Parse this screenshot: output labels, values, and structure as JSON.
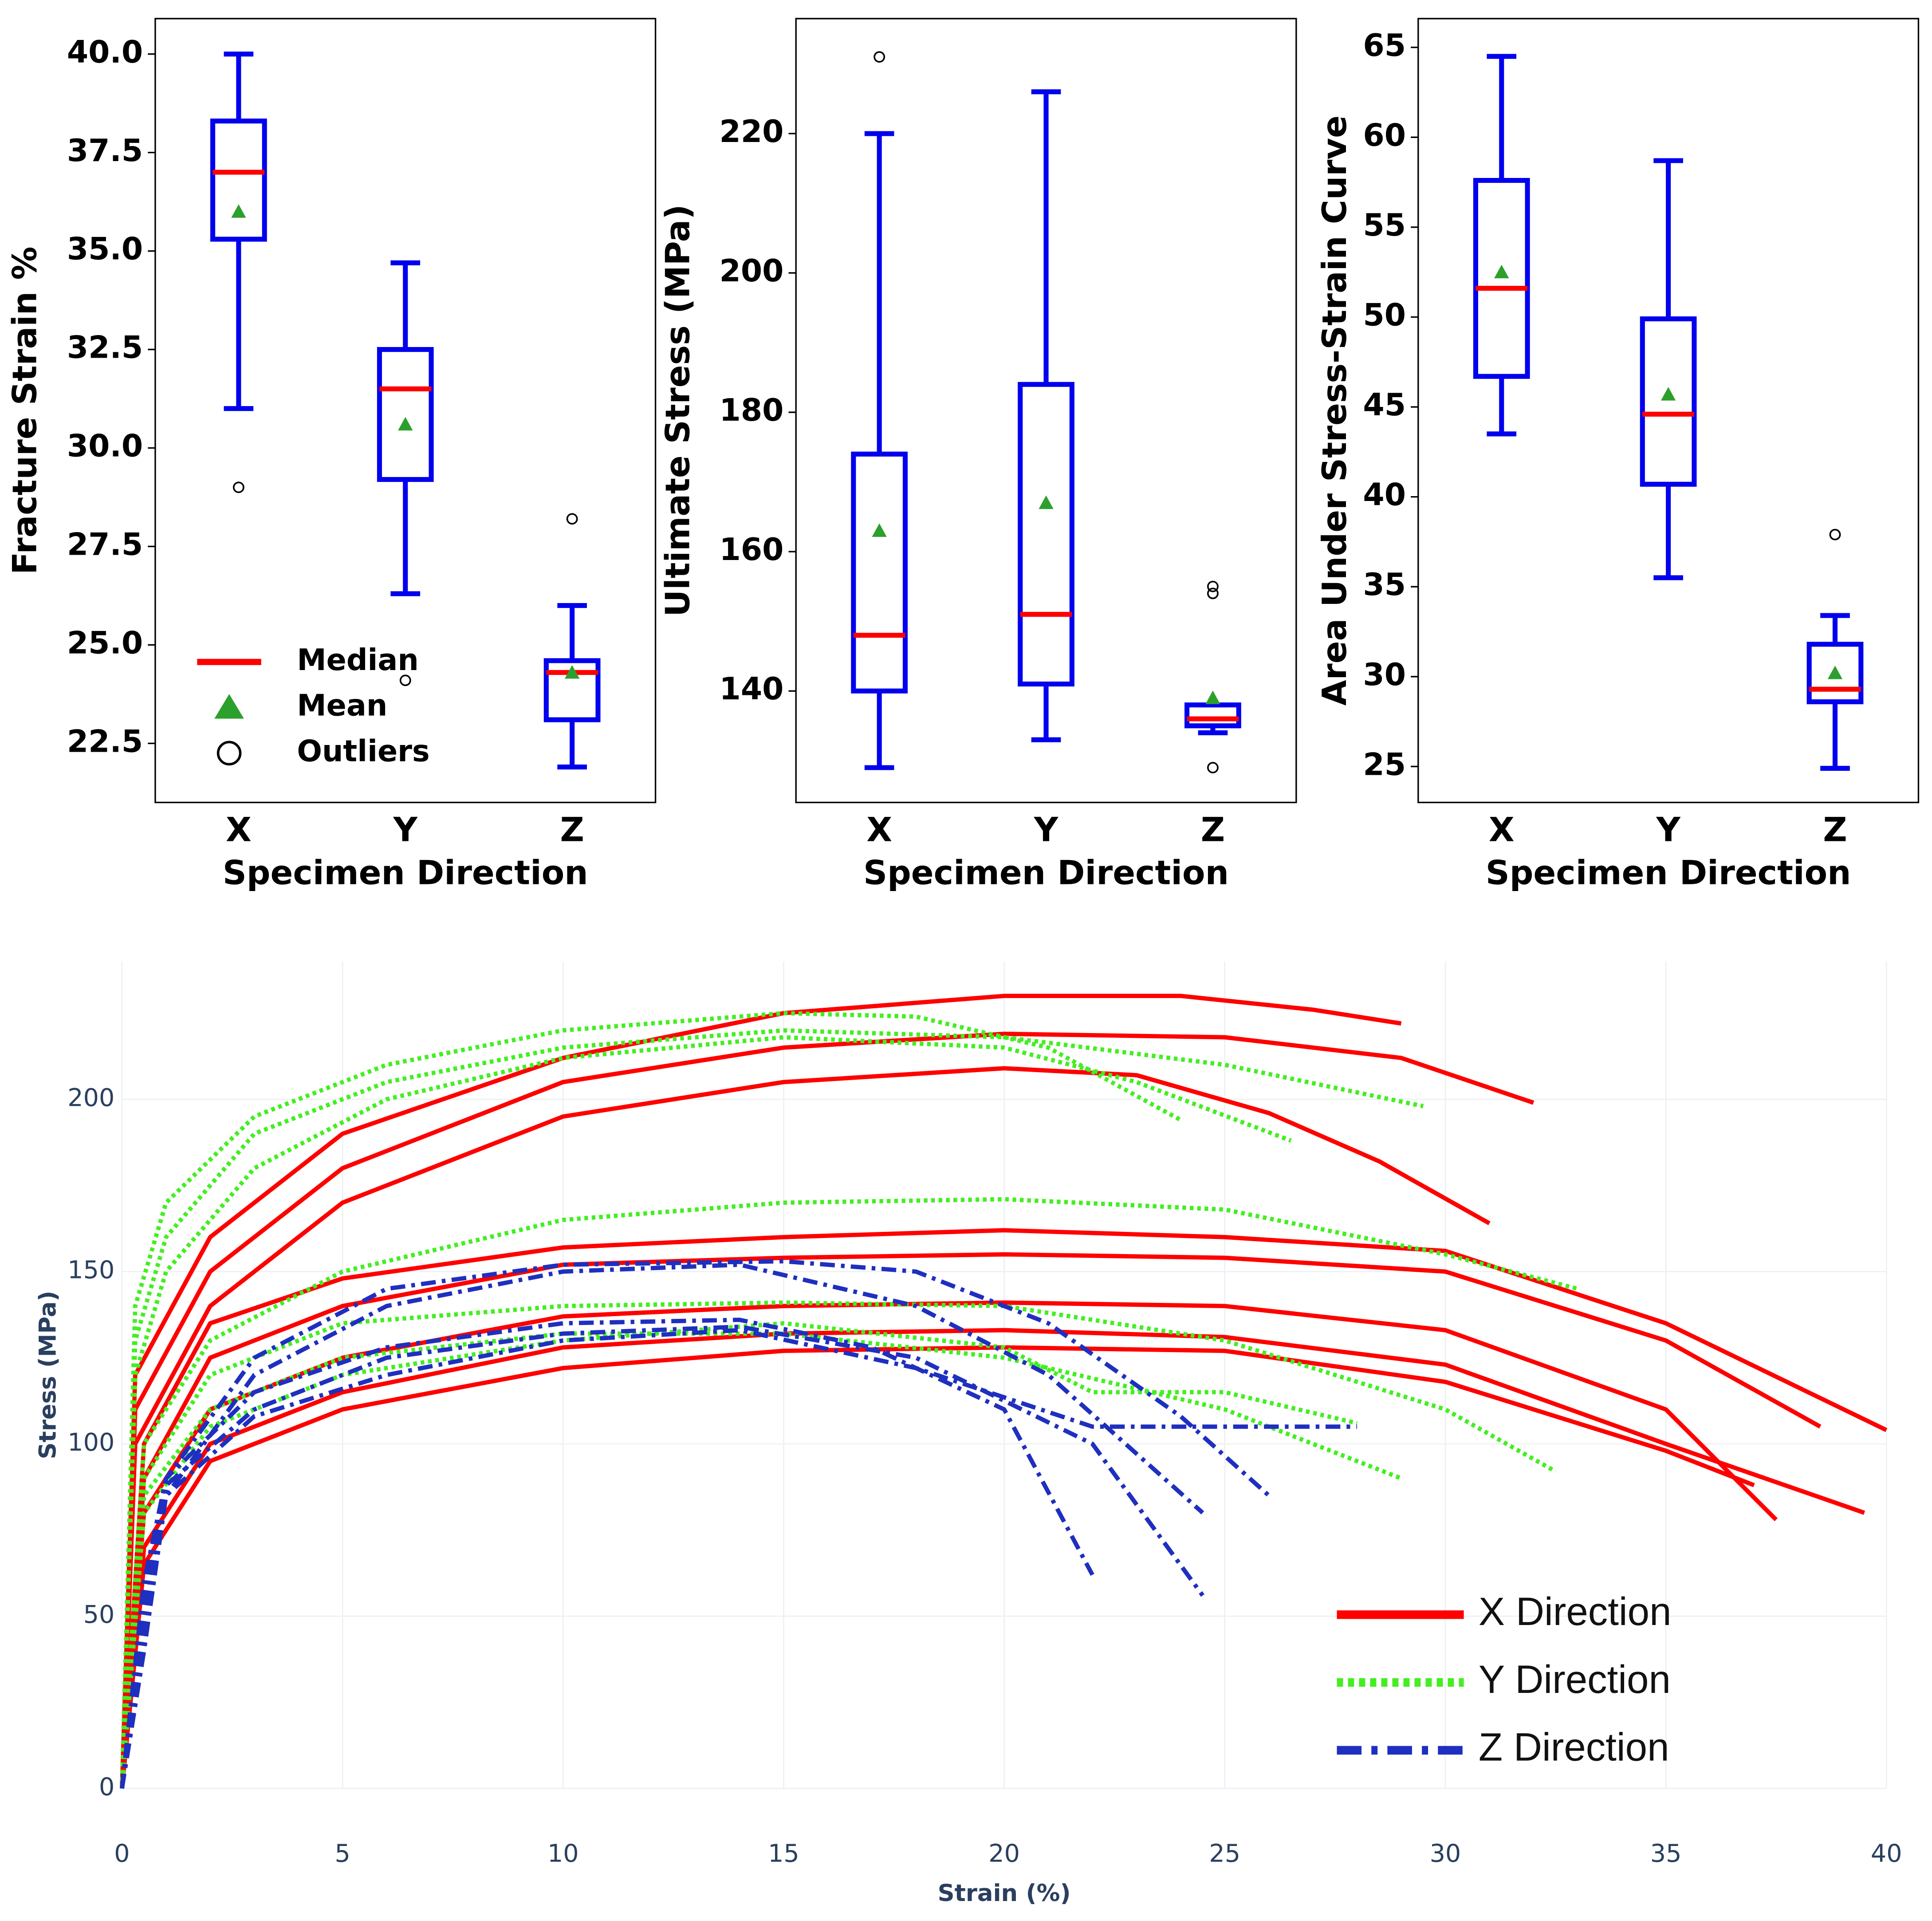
{
  "chart_data": [
    {
      "type": "box",
      "ylabel": "Fracture Strain %",
      "xlabel": "Specimen Direction",
      "categories": [
        "X",
        "Y",
        "Z"
      ],
      "boxes": [
        {
          "min": 31.0,
          "q1": 35.3,
          "median": 37.0,
          "q3": 38.3,
          "max": 40.0,
          "mean": 36.0,
          "outliers": [
            29.0
          ]
        },
        {
          "min": 26.3,
          "q1": 29.2,
          "median": 31.5,
          "q3": 32.5,
          "max": 34.7,
          "mean": 30.6,
          "outliers": [
            24.1
          ]
        },
        {
          "min": 21.9,
          "q1": 23.1,
          "median": 24.3,
          "q3": 24.6,
          "max": 26.0,
          "mean": 24.3,
          "outliers": [
            28.2
          ]
        }
      ],
      "ylim": [
        21.0,
        40.9
      ],
      "yticks": [
        22.5,
        {
          "value": 25,
          "label": "25.0"
        },
        27.5,
        {
          "value": 30,
          "label": "30.0"
        },
        32.5,
        {
          "value": 35,
          "label": "35.0"
        },
        37.5,
        {
          "value": 40,
          "label": "40.0"
        }
      ],
      "box_color": "#0000ee",
      "median_color": "#ff0000",
      "mean_color": "#2ca02c",
      "legend": [
        "Median",
        "Mean",
        "Outliers"
      ],
      "legend_position": "lower left"
    },
    {
      "type": "box",
      "ylabel": "Ultimate Stress (MPa)",
      "xlabel": "Specimen Direction",
      "categories": [
        "X",
        "Y",
        "Z"
      ],
      "boxes": [
        {
          "min": 129,
          "q1": 140,
          "median": 148,
          "q3": 174,
          "max": 220,
          "mean": 163,
          "outliers": [
            231
          ]
        },
        {
          "min": 133,
          "q1": 141,
          "median": 151,
          "q3": 184,
          "max": 226,
          "mean": 167,
          "outliers": []
        },
        {
          "min": 134,
          "q1": 135,
          "median": 136,
          "q3": 138,
          "max": 138,
          "mean": 139,
          "outliers": [
            155,
            154,
            129
          ]
        }
      ],
      "ylim": [
        124,
        236.5
      ],
      "yticks": [
        140,
        160,
        180,
        200,
        220
      ],
      "box_color": "#0000ee",
      "median_color": "#ff0000",
      "mean_color": "#2ca02c"
    },
    {
      "type": "box",
      "ylabel": "Area Under Stress-Strain Curve",
      "xlabel": "Specimen Direction",
      "categories": [
        "X",
        "Y",
        "Z"
      ],
      "boxes": [
        {
          "min": 43.5,
          "q1": 46.7,
          "median": 51.6,
          "q3": 57.6,
          "max": 64.5,
          "mean": 52.5,
          "outliers": []
        },
        {
          "min": 35.5,
          "q1": 40.7,
          "median": 44.6,
          "q3": 49.9,
          "max": 58.7,
          "mean": 45.7,
          "outliers": []
        },
        {
          "min": 24.9,
          "q1": 28.6,
          "median": 29.3,
          "q3": 31.8,
          "max": 33.4,
          "mean": 30.2,
          "outliers": [
            37.9
          ]
        }
      ],
      "ylim": [
        23,
        66.6
      ],
      "yticks": [
        25,
        30,
        35,
        40,
        45,
        50,
        55,
        60,
        65
      ],
      "box_color": "#0000ee",
      "median_color": "#ff0000",
      "mean_color": "#2ca02c"
    },
    {
      "type": "line",
      "xlabel": "Strain (%)",
      "ylabel": "Stress (MPa)",
      "xlim": [
        0,
        40
      ],
      "xticks": [
        0,
        5,
        10,
        15,
        20,
        25,
        30,
        35,
        40
      ],
      "ylim": [
        0,
        240
      ],
      "yticks": [
        0,
        50,
        100,
        150,
        200
      ],
      "grid": true,
      "legend_position": "lower right",
      "series": [
        {
          "name": "X Direction",
          "color": "#ff0000",
          "dash": "solid",
          "curves": [
            {
              "x": [
                0,
                0.3,
                2,
                5,
                10,
                15,
                20,
                24,
                27,
                29
              ],
              "values": [
                0,
                120,
                160,
                190,
                212,
                225,
                230,
                230,
                226,
                222
              ]
            },
            {
              "x": [
                0,
                0.3,
                2,
                5,
                10,
                15,
                20,
                25,
                29,
                32
              ],
              "values": [
                0,
                110,
                150,
                180,
                205,
                215,
                219,
                218,
                212,
                199
              ]
            },
            {
              "x": [
                0,
                0.3,
                2,
                5,
                10,
                15,
                20,
                23,
                26,
                28.5,
                31
              ],
              "values": [
                0,
                100,
                140,
                170,
                195,
                205,
                209,
                207,
                196,
                182,
                164
              ]
            },
            {
              "x": [
                0,
                0.5,
                2,
                5,
                10,
                15,
                20,
                25,
                30,
                35,
                40
              ],
              "values": [
                0,
                100,
                135,
                148,
                157,
                160,
                162,
                160,
                156,
                135,
                104
              ]
            },
            {
              "x": [
                0,
                0.5,
                2,
                5,
                10,
                15,
                20,
                25,
                30,
                35,
                38.5
              ],
              "values": [
                0,
                90,
                125,
                140,
                152,
                154,
                155,
                154,
                150,
                130,
                105
              ]
            },
            {
              "x": [
                0,
                0.5,
                2,
                5,
                10,
                15,
                20,
                25,
                30,
                35,
                37.5
              ],
              "values": [
                0,
                80,
                110,
                125,
                137,
                140,
                141,
                140,
                133,
                110,
                78
              ]
            },
            {
              "x": [
                0,
                0.5,
                2,
                5,
                10,
                15,
                20,
                25,
                30,
                35,
                39.5
              ],
              "values": [
                0,
                70,
                100,
                115,
                128,
                132,
                133,
                131,
                123,
                100,
                80
              ]
            },
            {
              "x": [
                0,
                0.5,
                2,
                5,
                10,
                15,
                20,
                25,
                30,
                35,
                37
              ],
              "values": [
                0,
                65,
                95,
                110,
                122,
                127,
                128,
                127,
                118,
                98,
                88
              ]
            }
          ]
        },
        {
          "name": "Y Direction",
          "color": "#44ee22",
          "dash": "dot",
          "curves": [
            {
              "x": [
                0,
                0.3,
                1,
                3,
                6,
                10,
                15,
                18,
                21,
                24
              ],
              "values": [
                0,
                140,
                170,
                195,
                210,
                220,
                225,
                224,
                215,
                194
              ]
            },
            {
              "x": [
                0,
                0.3,
                1,
                3,
                6,
                10,
                15,
                20,
                25,
                29.5
              ],
              "values": [
                0,
                130,
                160,
                190,
                205,
                215,
                220,
                218,
                210,
                198
              ]
            },
            {
              "x": [
                0,
                0.3,
                1,
                3,
                6,
                10,
                15,
                20,
                23,
                26.5
              ],
              "values": [
                0,
                120,
                150,
                180,
                200,
                212,
                218,
                215,
                205,
                188
              ]
            },
            {
              "x": [
                0,
                0.5,
                2,
                5,
                10,
                15,
                20,
                25,
                30,
                33
              ],
              "values": [
                0,
                100,
                130,
                150,
                165,
                170,
                171,
                168,
                155,
                145
              ]
            },
            {
              "x": [
                0,
                0.5,
                2,
                5,
                10,
                15,
                20,
                25,
                30,
                32.5
              ],
              "values": [
                0,
                90,
                120,
                135,
                140,
                141,
                140,
                130,
                110,
                92
              ]
            },
            {
              "x": [
                0,
                0.5,
                2,
                5,
                10,
                15,
                20,
                25,
                29
              ],
              "values": [
                0,
                85,
                110,
                125,
                132,
                132,
                125,
                110,
                90
              ]
            },
            {
              "x": [
                0,
                0.5,
                2,
                5,
                10,
                15,
                20,
                22,
                25,
                28
              ],
              "values": [
                0,
                80,
                105,
                120,
                130,
                135,
                128,
                115,
                115,
                106
              ]
            }
          ]
        },
        {
          "name": "Z Direction",
          "color": "#1f2fbf",
          "dash": "dashdot",
          "curves": [
            {
              "x": [
                0,
                0.5,
                1,
                3,
                6,
                10,
                15,
                18,
                21,
                24,
                26
              ],
              "values": [
                0,
                60,
                90,
                125,
                145,
                152,
                153,
                150,
                135,
                108,
                85
              ]
            },
            {
              "x": [
                0,
                0.5,
                1,
                3,
                6,
                10,
                14,
                18,
                21,
                24.5
              ],
              "values": [
                0,
                55,
                85,
                120,
                140,
                150,
                152,
                140,
                120,
                80
              ]
            },
            {
              "x": [
                0,
                0.5,
                1,
                3,
                6,
                10,
                14,
                17,
                20,
                22
              ],
              "values": [
                0,
                50,
                90,
                115,
                128,
                135,
                136,
                128,
                110,
                62
              ]
            },
            {
              "x": [
                0,
                0.5,
                1,
                3,
                6,
                10,
                14,
                18,
                22,
                24.5
              ],
              "values": [
                0,
                45,
                88,
                110,
                125,
                132,
                134,
                125,
                100,
                56
              ]
            },
            {
              "x": [
                0,
                0.5,
                1,
                3,
                6,
                10,
                14,
                18,
                22,
                28
              ],
              "values": [
                0,
                40,
                85,
                108,
                120,
                130,
                133,
                122,
                105,
                105
              ]
            }
          ]
        }
      ]
    }
  ]
}
